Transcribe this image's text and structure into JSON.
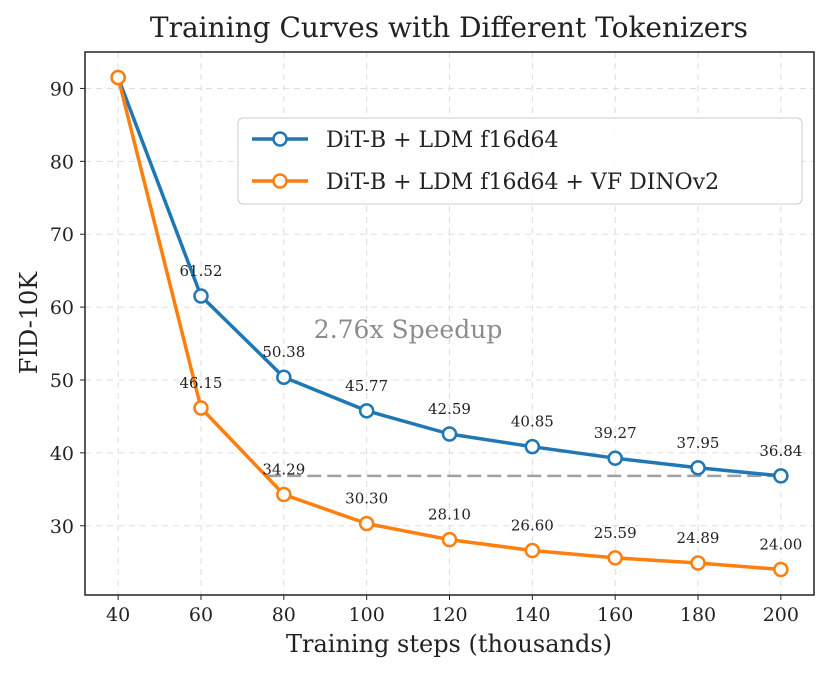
{
  "chart_data": {
    "type": "line",
    "title": "Training Curves with Different Tokenizers",
    "xlabel": "Training steps (thousands)",
    "ylabel": "FID-10K",
    "xlim": [
      32,
      208
    ],
    "ylim": [
      20.5,
      95
    ],
    "x": [
      40,
      60,
      80,
      100,
      120,
      140,
      160,
      180,
      200
    ],
    "xticks": [
      40,
      60,
      80,
      100,
      120,
      140,
      160,
      180,
      200
    ],
    "yticks": [
      30,
      40,
      50,
      60,
      70,
      80,
      90
    ],
    "grid": true,
    "legend_position": "top-right",
    "series": [
      {
        "name": "DiT-B + LDM f16d64",
        "color": "#1f77b4",
        "values": [
          91.5,
          61.52,
          50.38,
          45.77,
          42.59,
          40.85,
          39.27,
          37.95,
          36.84
        ],
        "labels": [
          "",
          "61.52",
          "50.38",
          "45.77",
          "42.59",
          "40.85",
          "39.27",
          "37.95",
          "36.84"
        ]
      },
      {
        "name": "DiT-B + LDM f16d64 + VF DINOv2",
        "color": "#ff7f0e",
        "values": [
          91.5,
          46.15,
          34.29,
          30.3,
          28.1,
          26.6,
          25.59,
          24.89,
          24.0
        ],
        "labels": [
          "",
          "46.15",
          "34.29",
          "30.30",
          "28.10",
          "26.60",
          "25.59",
          "24.89",
          "24.00"
        ]
      }
    ],
    "reference_line": {
      "y": 36.84,
      "x_from": 76,
      "x_to": 200,
      "color": "#a0a0a0"
    },
    "annotation": {
      "text": "2.76x Speedup",
      "x": 110,
      "y": 57
    }
  }
}
